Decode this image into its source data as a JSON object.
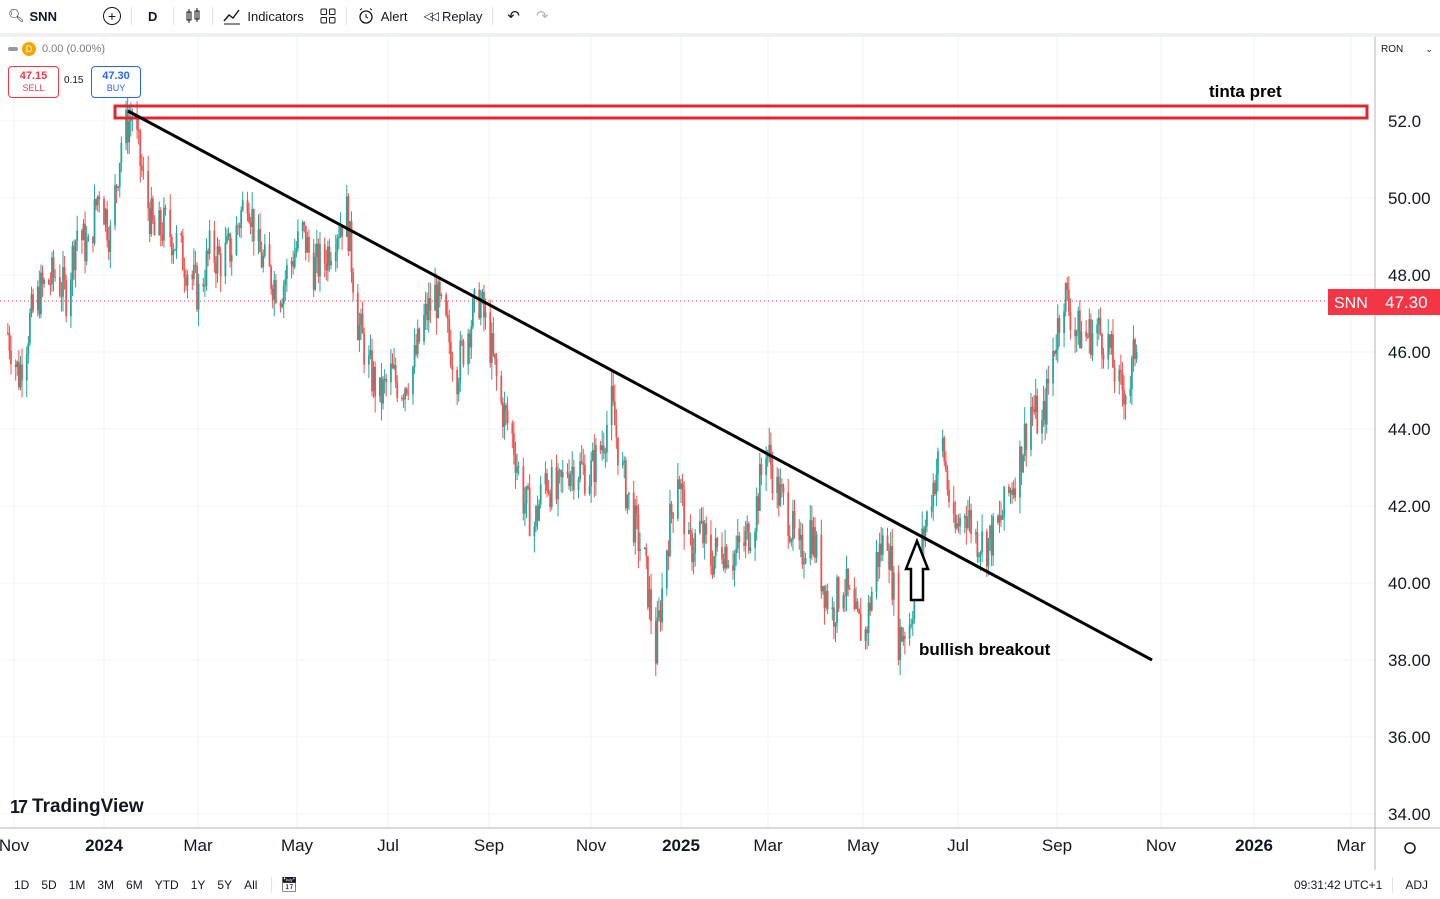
{
  "toolbar": {
    "symbol": "SNN",
    "interval": "D",
    "indicators_label": "Indicators",
    "alert_label": "Alert",
    "replay_label": "Replay"
  },
  "legend": {
    "interval": "D",
    "change": "0.00 (0.00%)",
    "sell_price": "47.15",
    "sell_label": "SELL",
    "spread": "0.15",
    "buy_price": "47.30",
    "buy_label": "BUY"
  },
  "price_scale": {
    "currency": "RON",
    "ticks": [
      "52.0",
      "50.00",
      "48.00",
      "46.00",
      "44.00",
      "42.00",
      "40.00",
      "38.00",
      "36.00",
      "34.00"
    ],
    "last_symbol": "SNN",
    "last_price": "47.30"
  },
  "time_axis": {
    "ticks": [
      "Nov",
      "2024",
      "Mar",
      "May",
      "Jul",
      "Sep",
      "Nov",
      "2025",
      "Mar",
      "May",
      "Jul",
      "Sep",
      "Nov",
      "2026",
      "Mar"
    ]
  },
  "annotations": {
    "resistance_label": "tinta pret",
    "breakout_label": "bullish breakout"
  },
  "brand": {
    "name": "TradingView"
  },
  "bottombar": {
    "ranges": [
      "1D",
      "5D",
      "1M",
      "3M",
      "6M",
      "YTD",
      "1Y",
      "5Y",
      "All"
    ],
    "time": "09:31:42 UTC+1",
    "adj": "ADJ"
  },
  "colors": {
    "up": "#26a69a",
    "down": "#ef5350",
    "resistance_box": "#e0262e",
    "trendline": "#000000",
    "last_price_bg": "#f23645"
  },
  "chart_data": {
    "type": "candlestick",
    "symbol": "SNN",
    "currency": "RON",
    "ylim": [
      34,
      53.5
    ],
    "x_range": [
      "2023-11-01",
      "2026-03-31"
    ],
    "last_price": 47.3,
    "series": [
      {
        "date": "2023-11-01",
        "close": 46.5
      },
      {
        "date": "2023-11-08",
        "close": 45.4
      },
      {
        "date": "2023-11-15",
        "close": 46.8
      },
      {
        "date": "2023-11-22",
        "close": 47.6
      },
      {
        "date": "2023-12-01",
        "close": 48.0
      },
      {
        "date": "2023-12-08",
        "close": 47.5
      },
      {
        "date": "2023-12-15",
        "close": 49.2
      },
      {
        "date": "2023-12-22",
        "close": 48.6
      },
      {
        "date": "2023-12-29",
        "close": 50.3
      },
      {
        "date": "2024-01-05",
        "close": 49.0
      },
      {
        "date": "2024-01-12",
        "close": 51.5
      },
      {
        "date": "2024-01-19",
        "close": 52.2
      },
      {
        "date": "2024-01-26",
        "close": 50.4
      },
      {
        "date": "2024-02-02",
        "close": 49.0
      },
      {
        "date": "2024-02-09",
        "close": 49.3
      },
      {
        "date": "2024-02-16",
        "close": 48.8
      },
      {
        "date": "2024-02-23",
        "close": 48.2
      },
      {
        "date": "2024-03-01",
        "close": 47.5
      },
      {
        "date": "2024-03-08",
        "close": 48.6
      },
      {
        "date": "2024-03-15",
        "close": 48.4
      },
      {
        "date": "2024-03-22",
        "close": 48.7
      },
      {
        "date": "2024-04-01",
        "close": 50.2
      },
      {
        "date": "2024-04-08",
        "close": 48.6
      },
      {
        "date": "2024-04-15",
        "close": 48.0
      },
      {
        "date": "2024-04-22",
        "close": 47.6
      },
      {
        "date": "2024-04-29",
        "close": 48.4
      },
      {
        "date": "2024-05-06",
        "close": 49.1
      },
      {
        "date": "2024-05-13",
        "close": 48.2
      },
      {
        "date": "2024-05-20",
        "close": 48.4
      },
      {
        "date": "2024-05-27",
        "close": 49.2
      },
      {
        "date": "2024-06-03",
        "close": 49.6
      },
      {
        "date": "2024-06-10",
        "close": 46.8
      },
      {
        "date": "2024-06-17",
        "close": 45.6
      },
      {
        "date": "2024-06-24",
        "close": 44.8
      },
      {
        "date": "2024-07-01",
        "close": 45.4
      },
      {
        "date": "2024-07-08",
        "close": 45.1
      },
      {
        "date": "2024-07-15",
        "close": 45.6
      },
      {
        "date": "2024-07-22",
        "close": 46.8
      },
      {
        "date": "2024-07-29",
        "close": 47.5
      },
      {
        "date": "2024-08-05",
        "close": 46.6
      },
      {
        "date": "2024-08-12",
        "close": 45.5
      },
      {
        "date": "2024-08-19",
        "close": 46.6
      },
      {
        "date": "2024-08-26",
        "close": 47.4
      },
      {
        "date": "2024-09-02",
        "close": 46.2
      },
      {
        "date": "2024-09-09",
        "close": 44.6
      },
      {
        "date": "2024-09-16",
        "close": 43.8
      },
      {
        "date": "2024-09-23",
        "close": 42.2
      },
      {
        "date": "2024-09-30",
        "close": 41.5
      },
      {
        "date": "2024-10-07",
        "close": 42.8
      },
      {
        "date": "2024-10-14",
        "close": 42.2
      },
      {
        "date": "2024-10-21",
        "close": 43.0
      },
      {
        "date": "2024-10-28",
        "close": 43.0
      },
      {
        "date": "2024-11-04",
        "close": 42.8
      },
      {
        "date": "2024-11-11",
        "close": 43.5
      },
      {
        "date": "2024-11-18",
        "close": 44.6
      },
      {
        "date": "2024-11-25",
        "close": 42.8
      },
      {
        "date": "2024-12-02",
        "close": 41.6
      },
      {
        "date": "2024-12-09",
        "close": 40.5
      },
      {
        "date": "2024-12-16",
        "close": 38.2
      },
      {
        "date": "2024-12-23",
        "close": 41.0
      },
      {
        "date": "2024-12-30",
        "close": 43.0
      },
      {
        "date": "2025-01-06",
        "close": 40.8
      },
      {
        "date": "2025-01-13",
        "close": 41.4
      },
      {
        "date": "2025-01-20",
        "close": 40.6
      },
      {
        "date": "2025-01-27",
        "close": 41.0
      },
      {
        "date": "2025-02-03",
        "close": 40.7
      },
      {
        "date": "2025-02-10",
        "close": 41.0
      },
      {
        "date": "2025-02-17",
        "close": 41.8
      },
      {
        "date": "2025-02-24",
        "close": 43.6
      },
      {
        "date": "2025-03-03",
        "close": 42.4
      },
      {
        "date": "2025-03-10",
        "close": 41.8
      },
      {
        "date": "2025-03-17",
        "close": 40.6
      },
      {
        "date": "2025-03-24",
        "close": 41.5
      },
      {
        "date": "2025-03-31",
        "close": 40.2
      },
      {
        "date": "2025-04-07",
        "close": 39.2
      },
      {
        "date": "2025-04-14",
        "close": 40.1
      },
      {
        "date": "2025-04-21",
        "close": 39.0
      },
      {
        "date": "2025-04-28",
        "close": 38.7
      },
      {
        "date": "2025-05-05",
        "close": 40.6
      },
      {
        "date": "2025-05-12",
        "close": 41.3
      },
      {
        "date": "2025-05-19",
        "close": 38.6
      },
      {
        "date": "2025-05-26",
        "close": 39.0
      },
      {
        "date": "2025-06-02",
        "close": 40.8
      },
      {
        "date": "2025-06-09",
        "close": 42.4
      },
      {
        "date": "2025-06-16",
        "close": 43.6
      },
      {
        "date": "2025-06-23",
        "close": 41.2
      },
      {
        "date": "2025-06-30",
        "close": 42.0
      },
      {
        "date": "2025-07-07",
        "close": 41.2
      },
      {
        "date": "2025-07-14",
        "close": 41.0
      },
      {
        "date": "2025-07-21",
        "close": 41.4
      },
      {
        "date": "2025-07-28",
        "close": 42.3
      },
      {
        "date": "2025-08-04",
        "close": 43.2
      },
      {
        "date": "2025-08-11",
        "close": 44.6
      },
      {
        "date": "2025-08-18",
        "close": 44.0
      },
      {
        "date": "2025-08-25",
        "close": 46.0
      },
      {
        "date": "2025-09-01",
        "close": 47.6
      },
      {
        "date": "2025-09-08",
        "close": 46.6
      },
      {
        "date": "2025-09-15",
        "close": 46.4
      },
      {
        "date": "2025-09-22",
        "close": 46.6
      },
      {
        "date": "2025-09-29",
        "close": 46.2
      },
      {
        "date": "2025-10-06",
        "close": 45.0
      },
      {
        "date": "2025-10-13",
        "close": 45.2
      },
      {
        "date": "2025-10-20",
        "close": 47.3
      }
    ],
    "resistance_zone": {
      "from": "2024-01-12",
      "to": "2026-03-31",
      "y_low": 52.0,
      "y_high": 52.3,
      "label": "tinta pret"
    },
    "trendline": {
      "from": {
        "date": "2024-01-19",
        "y": 52.2
      },
      "to": {
        "date": "2025-11-20",
        "y": 38.0
      }
    },
    "breakout": {
      "date": "2025-07-01",
      "y": 41.0,
      "label": "bullish breakout"
    }
  }
}
